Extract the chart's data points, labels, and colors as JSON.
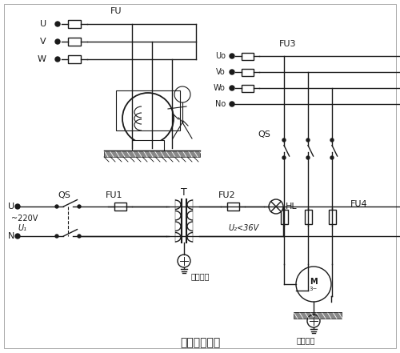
{
  "title": "保护接地电路",
  "background_color": "#ffffff",
  "line_color": "#1a1a1a",
  "fig_width": 5.0,
  "fig_height": 4.41,
  "labels": {
    "FU": "FU",
    "U": "U",
    "V": "V",
    "W": "W",
    "FU3": "FU3",
    "FU1": "FU1",
    "FU2": "FU2",
    "FU4": "FU4",
    "QS_left": "QS",
    "QS_right": "QS",
    "T": "T",
    "HL": "HL",
    "U2_label": "U₂<36V",
    "U_left": "U",
    "N_left": "N",
    "U1_label": "U₁",
    "voltage_label": "~220V",
    "protect_ground1": "保护接地",
    "protect_ground2": "保护接地",
    "M_label": "M",
    "M3": "3~",
    "bottom_title": "保护接地电路"
  }
}
